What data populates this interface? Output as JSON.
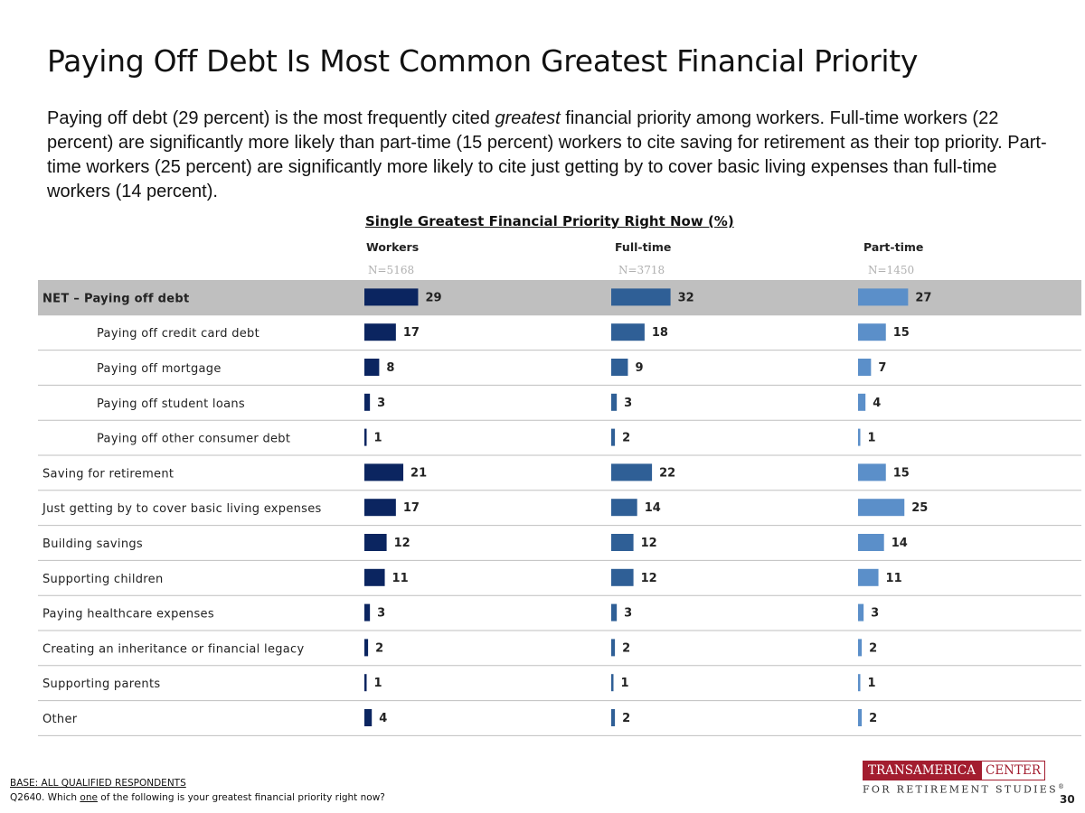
{
  "page": {
    "title": "Paying Off Debt Is Most Common Greatest Financial Priority",
    "subtitle_parts": [
      "Paying off debt (29 percent) is the most frequently cited ",
      "greatest",
      " financial priority among workers. Full-time workers (22 percent) are significantly more likely than part-time (15  percent) workers to cite saving for retirement as their top priority. Part-time workers (25 percent) are significantly more likely to cite just getting by to cover basic living expenses than full-time workers (14 percent)."
    ],
    "base_note": "BASE: ALL QUALIFIED RESPONDENTS",
    "question_parts": [
      "Q2640. Which ",
      "one",
      " of the following is your greatest financial priority right now?"
    ],
    "logo": {
      "left": "TRANSAMERICA",
      "right": "CENTER",
      "bottom": "FOR RETIREMENT STUDIES",
      "mark": "®"
    },
    "page_number": "30",
    "colors": {
      "workers": "#0b2560",
      "fulltime": "#2f5f96",
      "parttime": "#5b8fc9",
      "net_row_bg": "#bfbfbf",
      "divider": "#bfbfbf",
      "logo": "#a31d2f"
    }
  },
  "chart_data": {
    "type": "bar",
    "orientation": "horizontal",
    "title": "Single Greatest Financial Priority Right Now (%)",
    "categories": [
      "NET – Paying off debt",
      "Paying off credit card debt",
      "Paying off mortgage",
      "Paying off student loans",
      "Paying off other consumer debt",
      "Saving for retirement",
      "Just getting by to cover basic living expenses",
      "Building savings",
      "Supporting children",
      "Paying healthcare expenses",
      "Creating an inheritance or financial legacy",
      "Supporting parents",
      "Other"
    ],
    "indented": [
      false,
      true,
      true,
      true,
      true,
      false,
      false,
      false,
      false,
      false,
      false,
      false,
      false
    ],
    "highlighted": [
      true,
      false,
      false,
      false,
      false,
      false,
      false,
      false,
      false,
      false,
      false,
      false,
      false
    ],
    "series": [
      {
        "name": "Workers",
        "n": "N=5168",
        "values": [
          29,
          17,
          8,
          3,
          1,
          21,
          17,
          12,
          11,
          3,
          2,
          1,
          4
        ]
      },
      {
        "name": "Full-time",
        "n": "N=3718",
        "values": [
          32,
          18,
          9,
          3,
          2,
          22,
          14,
          12,
          12,
          3,
          2,
          1,
          2
        ]
      },
      {
        "name": "Part-time",
        "n": "N=1450",
        "values": [
          27,
          15,
          7,
          4,
          1,
          15,
          25,
          14,
          11,
          3,
          2,
          1,
          2
        ]
      }
    ],
    "xlim": [
      0,
      100
    ]
  }
}
